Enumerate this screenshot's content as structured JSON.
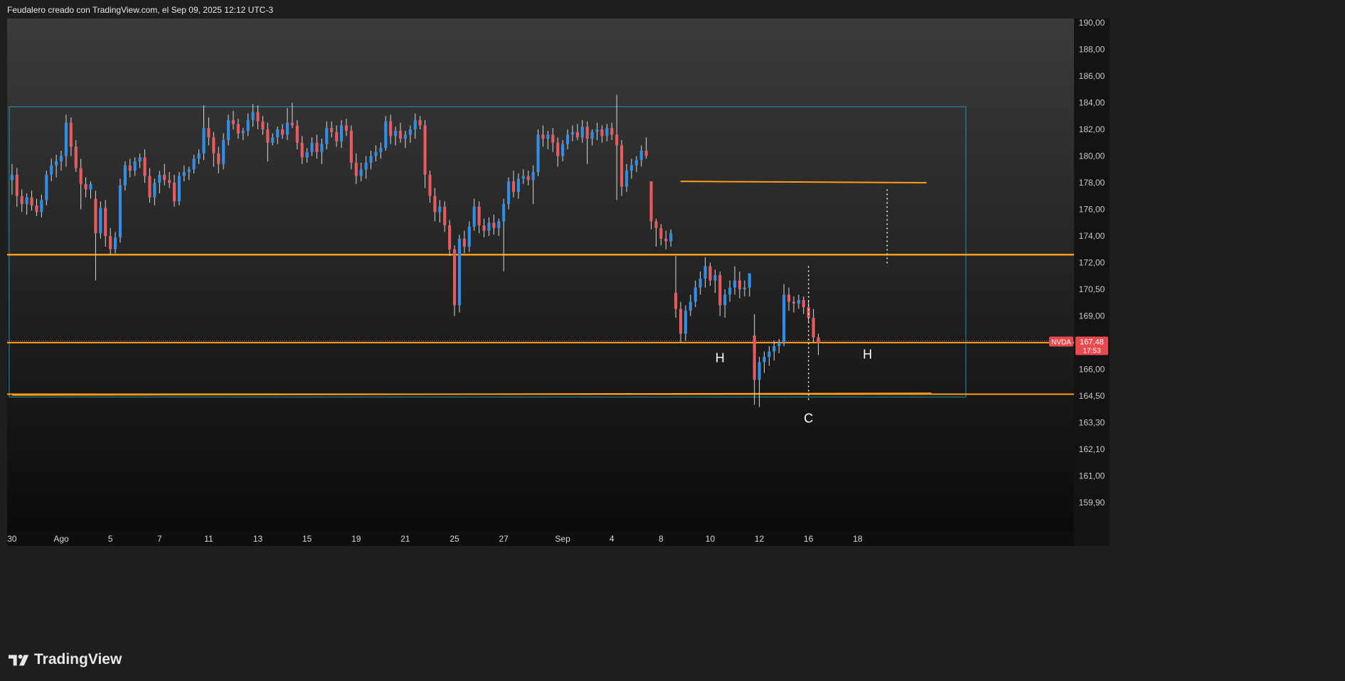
{
  "header": {
    "text": "Feudalero creado con TradingView.com, el Sep 09, 2025 12:12 UTC-3"
  },
  "brand": {
    "name": "TradingView"
  },
  "colors": {
    "up": "#2f8fe6",
    "down": "#e85a5e",
    "level": "#ff9b1a",
    "box": "#1fb0c7",
    "price_badge": "#e8484e",
    "background_top": "#3a3a3a",
    "background_bottom": "#0c0c0c"
  },
  "chart_data": {
    "type": "candlestick",
    "symbol": "NVDA",
    "last_price": "167,48",
    "countdown": "17:53",
    "y_ticks": [
      "190,00",
      "188,00",
      "186,00",
      "184,00",
      "182,00",
      "180,00",
      "178,00",
      "176,00",
      "174,00",
      "172,00",
      "170,50",
      "169,00",
      "167,50",
      "166,00",
      "164,50",
      "163,30",
      "162,10",
      "161,00",
      "159,90"
    ],
    "y_tick_values": [
      190,
      188,
      186,
      184,
      182,
      180,
      178,
      176,
      174,
      172,
      170.5,
      169,
      167.5,
      166,
      164.5,
      163.3,
      162.1,
      161,
      159.9
    ],
    "x_ticks": [
      "30",
      "Ago",
      "5",
      "7",
      "11",
      "13",
      "15",
      "19",
      "21",
      "25",
      "27",
      "Sep",
      "4",
      "8",
      "10",
      "12",
      "16",
      "18"
    ],
    "x_tick_bars": [
      0,
      10,
      20,
      30,
      40,
      50,
      60,
      70,
      80,
      90,
      100,
      112,
      122,
      132,
      142,
      152,
      162,
      172
    ],
    "candles": [
      [
        178.2,
        179.4,
        177.1,
        178.6
      ],
      [
        178.6,
        179.1,
        176.2,
        177.0
      ],
      [
        177.0,
        177.5,
        175.8,
        176.4
      ],
      [
        176.4,
        177.2,
        175.6,
        176.9
      ],
      [
        176.9,
        177.4,
        175.9,
        176.3
      ],
      [
        176.3,
        176.8,
        175.5,
        175.8
      ],
      [
        175.8,
        177.1,
        175.4,
        176.7
      ],
      [
        176.7,
        178.9,
        176.3,
        178.6
      ],
      [
        178.6,
        179.8,
        178.1,
        179.3
      ],
      [
        179.3,
        180.1,
        178.4,
        179.6
      ],
      [
        179.6,
        180.4,
        178.9,
        180.0
      ],
      [
        180.0,
        183.1,
        179.2,
        182.5
      ],
      [
        182.5,
        182.9,
        180.0,
        180.7
      ],
      [
        180.7,
        181.2,
        178.8,
        179.1
      ],
      [
        179.1,
        179.8,
        176.0,
        177.9
      ],
      [
        177.9,
        178.4,
        176.9,
        177.5
      ],
      [
        177.5,
        178.1,
        176.8,
        177.9
      ],
      [
        176.8,
        177.4,
        171.0,
        174.2
      ],
      [
        174.2,
        176.6,
        173.8,
        176.1
      ],
      [
        176.1,
        176.7,
        173.2,
        174.0
      ],
      [
        174.0,
        174.6,
        172.6,
        173.0
      ],
      [
        173.0,
        174.3,
        172.7,
        173.9
      ],
      [
        173.9,
        178.3,
        173.5,
        177.8
      ],
      [
        177.8,
        179.6,
        177.4,
        179.3
      ],
      [
        179.3,
        179.8,
        178.4,
        178.9
      ],
      [
        178.9,
        179.9,
        178.5,
        179.6
      ],
      [
        179.6,
        180.2,
        179.1,
        179.9
      ],
      [
        179.9,
        180.5,
        178.0,
        178.5
      ],
      [
        178.5,
        179.1,
        176.5,
        176.9
      ],
      [
        176.9,
        178.3,
        176.3,
        178.0
      ],
      [
        178.0,
        178.9,
        177.2,
        178.6
      ],
      [
        178.6,
        179.4,
        177.8,
        178.2
      ],
      [
        178.2,
        178.8,
        177.6,
        178.0
      ],
      [
        178.0,
        178.6,
        176.2,
        176.6
      ],
      [
        176.6,
        178.8,
        176.3,
        178.5
      ],
      [
        178.5,
        179.3,
        178.1,
        178.8
      ],
      [
        178.8,
        179.2,
        178.2,
        179.0
      ],
      [
        179.0,
        180.1,
        178.7,
        179.8
      ],
      [
        179.8,
        180.5,
        179.4,
        180.2
      ],
      [
        180.2,
        183.8,
        179.7,
        182.1
      ],
      [
        182.1,
        182.9,
        180.8,
        181.4
      ],
      [
        181.4,
        181.8,
        179.2,
        180.2
      ],
      [
        180.2,
        180.7,
        178.7,
        179.4
      ],
      [
        179.4,
        181.7,
        179.0,
        181.2
      ],
      [
        181.2,
        183.1,
        180.8,
        182.7
      ],
      [
        182.7,
        183.4,
        182.0,
        182.4
      ],
      [
        182.4,
        182.8,
        181.3,
        181.7
      ],
      [
        181.7,
        182.1,
        181.2,
        181.9
      ],
      [
        181.9,
        183.2,
        181.5,
        182.7
      ],
      [
        182.7,
        183.9,
        182.2,
        183.3
      ],
      [
        183.3,
        183.8,
        182.0,
        182.6
      ],
      [
        182.6,
        183.0,
        181.6,
        182.0
      ],
      [
        182.0,
        182.5,
        179.6,
        181.0
      ],
      [
        181.0,
        181.7,
        180.8,
        181.4
      ],
      [
        181.4,
        182.2,
        180.9,
        182.0
      ],
      [
        182.0,
        182.4,
        181.3,
        181.6
      ],
      [
        181.6,
        183.6,
        181.2,
        182.5
      ],
      [
        182.5,
        184.0,
        182.1,
        182.3
      ],
      [
        182.3,
        182.7,
        180.5,
        181.0
      ],
      [
        181.0,
        181.5,
        179.4,
        179.9
      ],
      [
        179.9,
        180.6,
        179.5,
        180.3
      ],
      [
        180.3,
        181.4,
        180.0,
        181.0
      ],
      [
        181.0,
        181.6,
        179.8,
        180.3
      ],
      [
        180.3,
        181.3,
        179.4,
        180.9
      ],
      [
        180.9,
        182.6,
        180.5,
        182.1
      ],
      [
        182.1,
        182.6,
        181.4,
        181.8
      ],
      [
        181.8,
        182.3,
        180.7,
        181.1
      ],
      [
        181.1,
        182.7,
        180.6,
        182.3
      ],
      [
        182.3,
        182.8,
        181.5,
        181.9
      ],
      [
        181.9,
        182.3,
        179.0,
        179.5
      ],
      [
        179.5,
        180.2,
        177.9,
        178.5
      ],
      [
        178.5,
        179.5,
        178.1,
        179.0
      ],
      [
        179.0,
        180.0,
        178.3,
        179.5
      ],
      [
        179.5,
        180.4,
        179.0,
        180.0
      ],
      [
        180.0,
        180.8,
        179.6,
        180.3
      ],
      [
        180.3,
        181.0,
        179.8,
        180.6
      ],
      [
        180.6,
        183.0,
        180.4,
        182.6
      ],
      [
        182.6,
        183.1,
        180.9,
        181.5
      ],
      [
        181.5,
        182.2,
        180.8,
        181.9
      ],
      [
        181.9,
        182.5,
        181.0,
        181.3
      ],
      [
        181.3,
        181.9,
        180.6,
        181.6
      ],
      [
        181.6,
        182.3,
        181.0,
        182.0
      ],
      [
        182.0,
        183.2,
        181.3,
        182.7
      ],
      [
        182.7,
        183.0,
        182.0,
        182.3
      ],
      [
        182.3,
        182.7,
        177.6,
        178.6
      ],
      [
        178.6,
        178.9,
        176.5,
        177.0
      ],
      [
        177.0,
        177.6,
        175.1,
        175.8
      ],
      [
        175.8,
        176.7,
        175.0,
        176.2
      ],
      [
        176.2,
        176.6,
        174.3,
        174.8
      ],
      [
        174.8,
        175.2,
        172.5,
        173.0
      ],
      [
        173.0,
        173.3,
        169.0,
        169.6
      ],
      [
        169.6,
        174.1,
        169.2,
        173.8
      ],
      [
        173.8,
        174.4,
        172.7,
        173.2
      ],
      [
        173.2,
        175.1,
        172.8,
        174.7
      ],
      [
        174.7,
        176.8,
        174.4,
        176.2
      ],
      [
        176.2,
        176.6,
        174.2,
        174.8
      ],
      [
        174.8,
        175.3,
        173.9,
        174.4
      ],
      [
        174.4,
        175.4,
        174.0,
        175.0
      ],
      [
        175.0,
        175.6,
        174.1,
        174.6
      ],
      [
        174.6,
        175.3,
        174.0,
        175.1
      ],
      [
        175.1,
        176.8,
        171.5,
        176.4
      ],
      [
        176.4,
        178.4,
        176.0,
        178.1
      ],
      [
        178.1,
        178.9,
        176.9,
        177.3
      ],
      [
        177.3,
        178.7,
        176.8,
        178.3
      ],
      [
        178.3,
        179.0,
        177.9,
        178.5
      ],
      [
        178.5,
        178.9,
        177.8,
        178.2
      ],
      [
        178.2,
        179.3,
        176.4,
        178.8
      ],
      [
        178.8,
        182.0,
        178.5,
        181.6
      ],
      [
        181.6,
        182.3,
        180.7,
        181.3
      ],
      [
        181.3,
        181.9,
        180.5,
        181.6
      ],
      [
        181.6,
        182.1,
        180.3,
        181.0
      ],
      [
        181.0,
        181.4,
        179.2,
        180.0
      ],
      [
        180.0,
        181.2,
        179.6,
        180.9
      ],
      [
        180.9,
        182.0,
        180.5,
        181.6
      ],
      [
        181.6,
        182.3,
        181.1,
        181.8
      ],
      [
        181.8,
        182.4,
        181.2,
        181.4
      ],
      [
        181.4,
        182.7,
        181.0,
        182.2
      ],
      [
        182.2,
        182.6,
        179.4,
        181.3
      ],
      [
        181.3,
        182.0,
        180.8,
        181.8
      ],
      [
        181.8,
        182.5,
        181.2,
        182.0
      ],
      [
        182.0,
        182.3,
        181.0,
        181.5
      ],
      [
        181.5,
        182.4,
        181.1,
        182.1
      ],
      [
        182.1,
        182.5,
        181.2,
        181.6
      ],
      [
        181.6,
        184.6,
        176.7,
        180.8
      ],
      [
        180.8,
        181.2,
        177.0,
        177.7
      ],
      [
        177.7,
        179.4,
        177.3,
        178.9
      ],
      [
        178.9,
        179.8,
        178.3,
        179.3
      ],
      [
        179.3,
        180.0,
        178.8,
        179.7
      ],
      [
        179.7,
        180.8,
        179.2,
        180.4
      ],
      [
        180.4,
        181.4,
        179.8,
        180.0
      ],
      [
        178.1,
        178.1,
        174.5,
        175.1
      ],
      [
        175.1,
        175.3,
        173.2,
        174.6
      ],
      [
        174.6,
        174.9,
        173.3,
        173.8
      ],
      [
        173.8,
        174.4,
        173.0,
        173.6
      ],
      [
        173.6,
        174.5,
        173.2,
        174.2
      ],
      [
        170.3,
        172.5,
        168.9,
        169.4
      ],
      [
        169.4,
        169.8,
        167.5,
        168.0
      ],
      [
        168.0,
        169.6,
        167.6,
        169.3
      ],
      [
        169.3,
        170.2,
        169.0,
        169.8
      ],
      [
        169.8,
        171.0,
        169.5,
        170.6
      ],
      [
        170.6,
        171.5,
        170.2,
        171.1
      ],
      [
        171.1,
        172.4,
        170.6,
        171.8
      ],
      [
        171.8,
        172.0,
        170.7,
        171.0
      ],
      [
        171.0,
        171.6,
        170.3,
        171.3
      ],
      [
        171.3,
        171.5,
        169.0,
        169.6
      ],
      [
        169.6,
        170.5,
        168.9,
        170.2
      ],
      [
        170.2,
        171.0,
        169.8,
        170.6
      ],
      [
        170.6,
        171.8,
        170.2,
        171.0
      ],
      [
        171.0,
        171.5,
        170.0,
        170.5
      ],
      [
        170.5,
        171.0,
        170.1,
        170.6
      ],
      [
        170.6,
        171.3,
        170.1,
        171.4
      ],
      [
        167.9,
        169.1,
        164.1,
        165.4
      ],
      [
        165.4,
        166.7,
        164.0,
        166.4
      ],
      [
        166.4,
        167.0,
        165.8,
        166.7
      ],
      [
        166.7,
        167.3,
        166.2,
        167.0
      ],
      [
        167.0,
        167.6,
        166.5,
        167.3
      ],
      [
        167.3,
        167.7,
        166.9,
        167.5
      ],
      [
        167.5,
        170.8,
        167.3,
        170.2
      ],
      [
        170.2,
        170.6,
        169.3,
        169.8
      ],
      [
        169.8,
        170.1,
        169.2,
        169.7
      ],
      [
        169.7,
        170.2,
        169.4,
        169.9
      ],
      [
        169.9,
        170.1,
        169.1,
        169.5
      ],
      [
        169.5,
        169.9,
        168.6,
        168.9
      ],
      [
        168.9,
        169.4,
        167.5,
        167.8
      ],
      [
        167.8,
        168.0,
        166.8,
        167.48
      ]
    ],
    "horizontal_levels": [
      172.6,
      167.5,
      164.6
    ],
    "segments": [
      {
        "from_bar": 136,
        "to_bar": 186,
        "from": 178.1,
        "to": 178.0
      },
      {
        "from_bar": 0,
        "to_bar": 187,
        "from": 164.55,
        "to": 164.65
      }
    ],
    "box": {
      "from_bar": 0,
      "to_bar": 194,
      "high": 183.7,
      "low": 164.45
    },
    "dotted_verticals": [
      {
        "bar": 162,
        "high": 171.8,
        "low": 164.3
      },
      {
        "bar": 178,
        "high": 177.5,
        "low": 171.8
      }
    ],
    "annotations": [
      {
        "text": "H",
        "bar": 144,
        "price": 166.4
      },
      {
        "text": "C",
        "bar": 162,
        "price": 163.3
      },
      {
        "text": "H",
        "bar": 174,
        "price": 166.6
      }
    ],
    "x_range": [
      -1,
      216
    ],
    "y_range": [
      159.3,
      190.6
    ]
  }
}
